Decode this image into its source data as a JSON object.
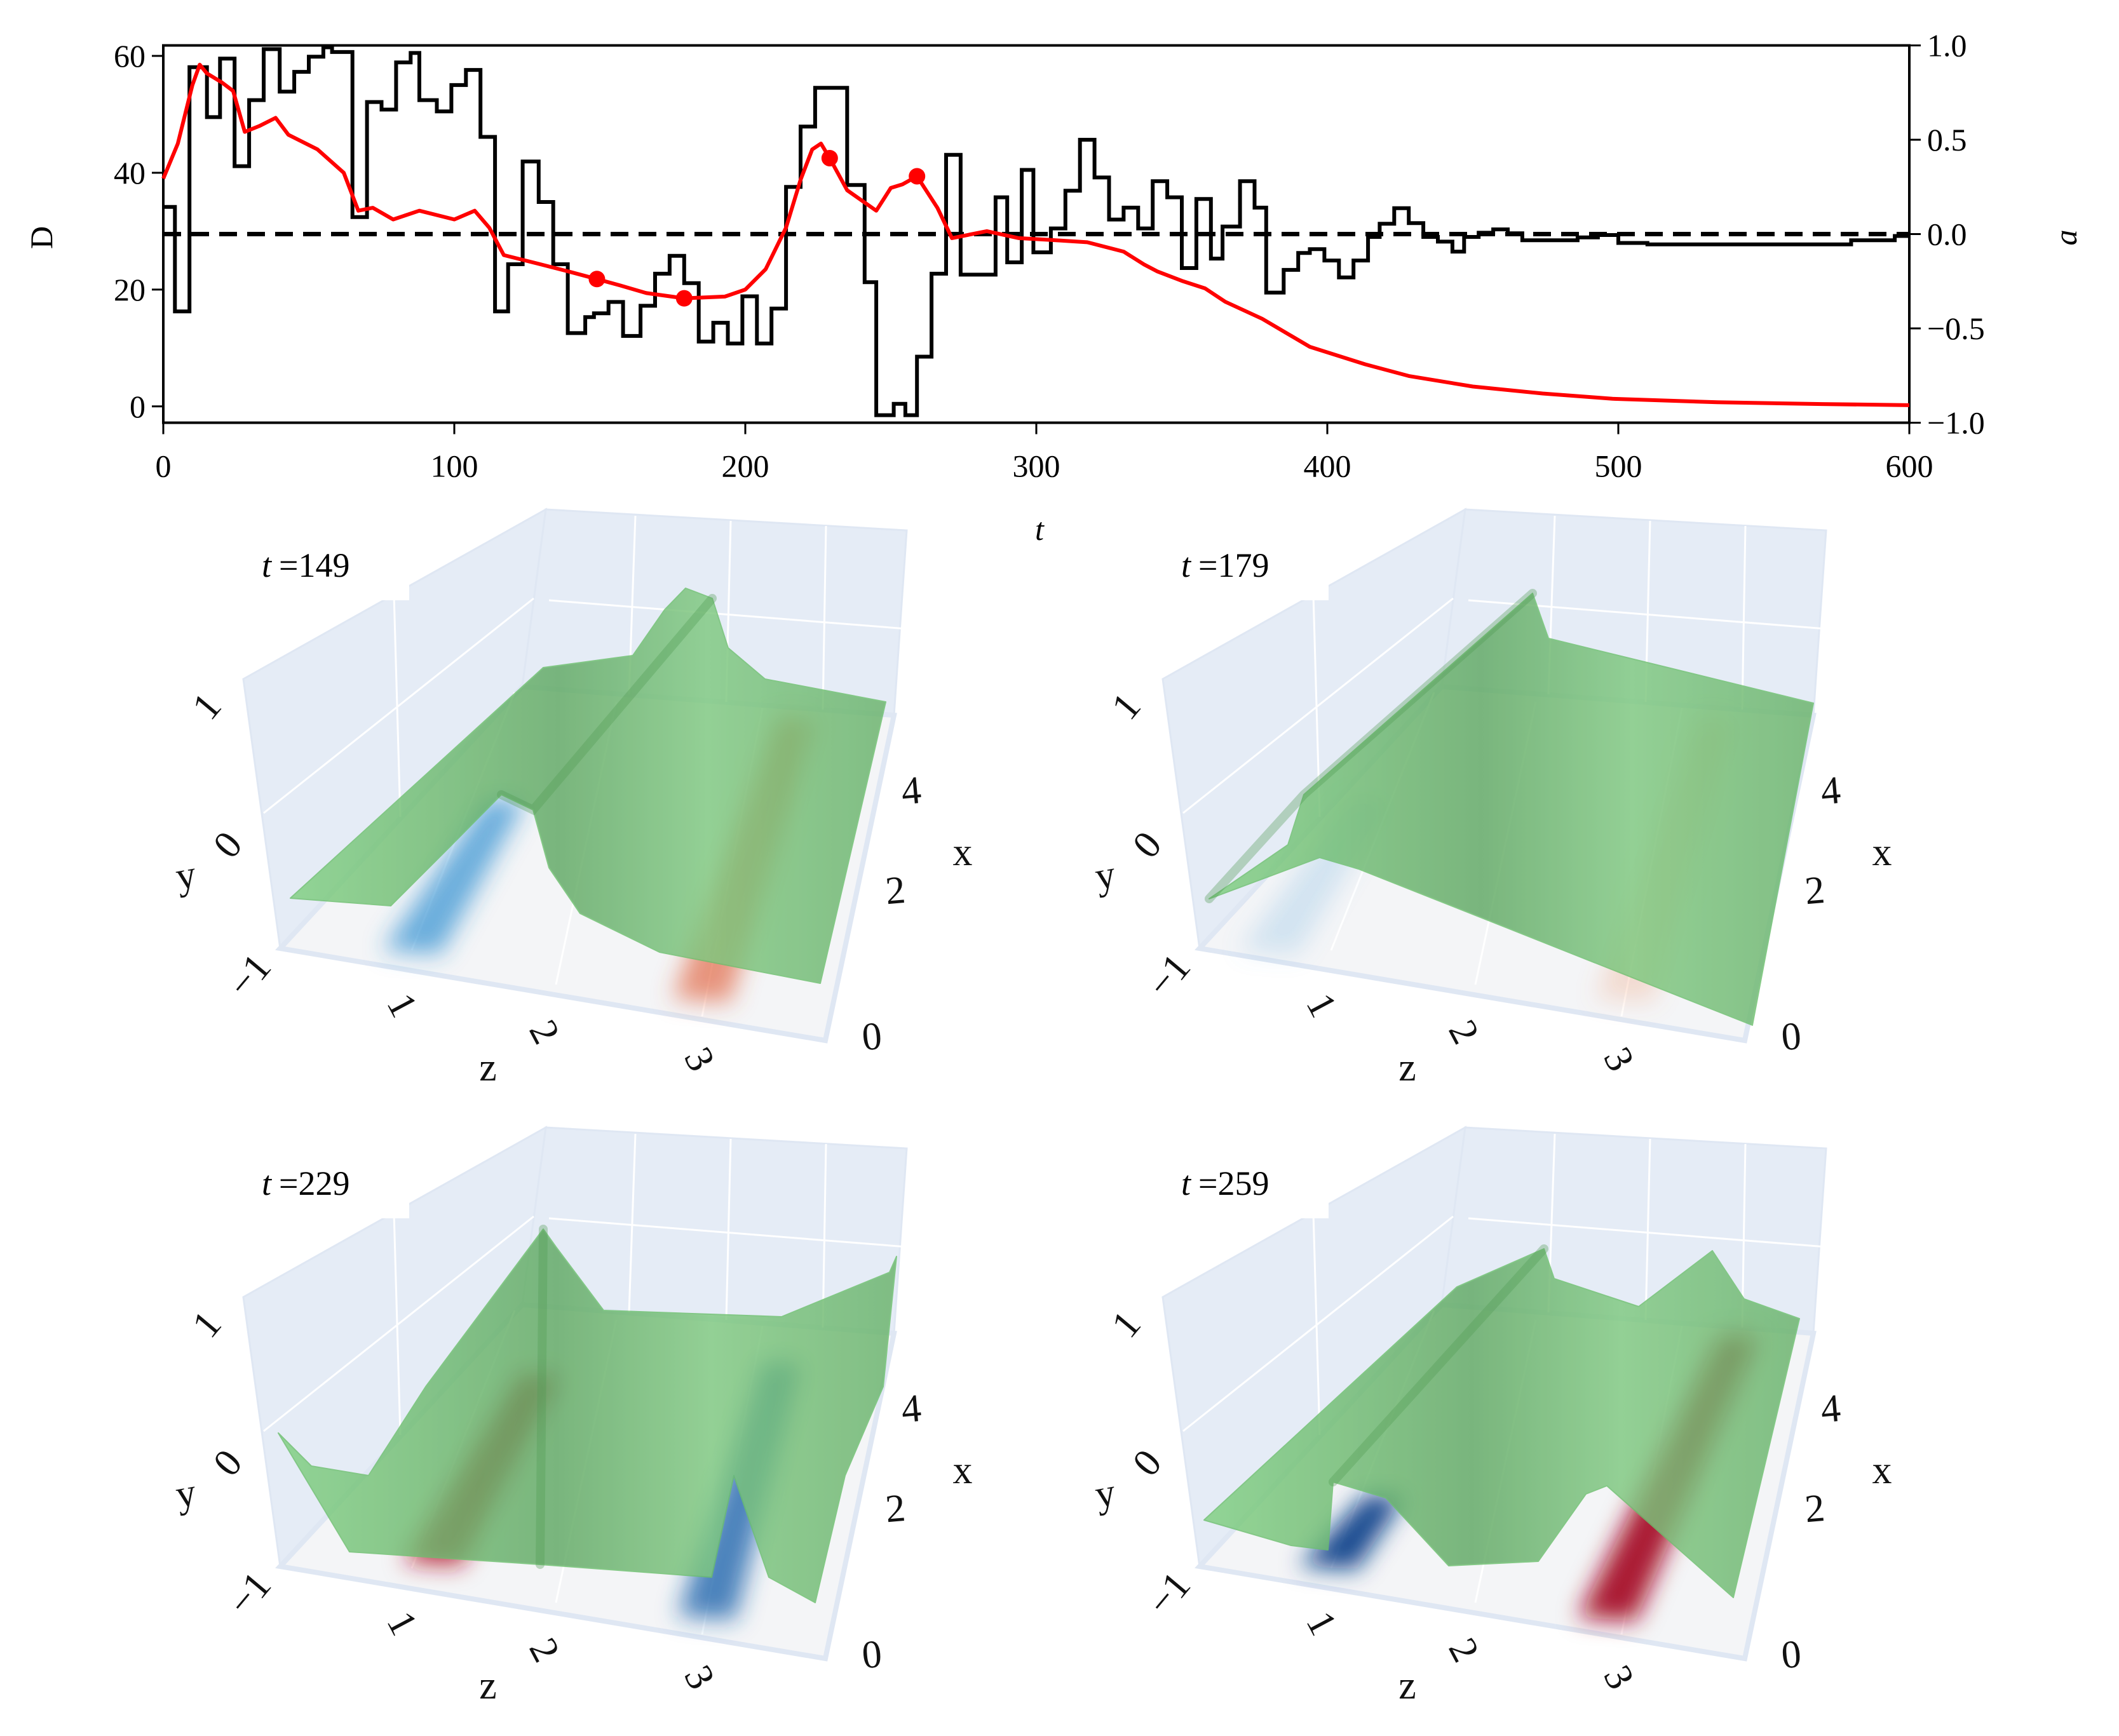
{
  "chart_data": [
    {
      "type": "line",
      "title": "",
      "xlabel": "t",
      "ylabel": "D",
      "y2label": "a",
      "xlim": [
        0,
        600
      ],
      "ylim": [
        -2.8,
        61.8
      ],
      "y2lim": [
        -1.0,
        1.0
      ],
      "xticks": [
        "0",
        "100",
        "200",
        "300",
        "400",
        "500",
        "600"
      ],
      "yticks": [
        "0",
        "20",
        "40",
        "60"
      ],
      "y2ticks": [
        "1.0",
        "0.5",
        "0.0",
        "−0.5",
        "−1.0"
      ],
      "grid": false,
      "reference_line": {
        "axis": "a",
        "value": 0.0,
        "style": "dashed",
        "color": "#000000"
      },
      "series": [
        {
          "name": "D",
          "axis": "left",
          "color": "#ff0000",
          "t": [
            0,
            5,
            10,
            12.5,
            15,
            20,
            24,
            28,
            33,
            38.6,
            43,
            53,
            62,
            67,
            72,
            79,
            88,
            100,
            107,
            112,
            117,
            129,
            140,
            149,
            157,
            166,
            179,
            193,
            200,
            207,
            214,
            219,
            223,
            226,
            229,
            235,
            245,
            250,
            254,
            259,
            266,
            271,
            283,
            294,
            305,
            317.5,
            330,
            337,
            341.6,
            350,
            358,
            365,
            377.6,
            394,
            413,
            428,
            450,
            474,
            498,
            534,
            570,
            600
          ],
          "values": [
            39,
            45,
            55,
            58.5,
            57,
            55.5,
            54,
            47,
            48,
            49.4,
            46.5,
            44,
            40,
            33.5,
            34,
            32,
            33.5,
            32,
            33.5,
            30.6,
            25.9,
            24.4,
            23,
            21.8,
            20.7,
            19.4,
            18.5,
            18.8,
            20,
            23.5,
            30.6,
            38.8,
            44,
            45,
            42.5,
            37,
            33.5,
            37.4,
            38,
            39.4,
            34,
            28.8,
            30,
            28.8,
            28.5,
            28.1,
            26.5,
            24.3,
            23.1,
            21.5,
            20.2,
            17.9,
            15,
            10.2,
            7.2,
            5.2,
            3.4,
            2.2,
            1.3,
            0.7,
            0.4,
            0.2
          ]
        },
        {
          "name": "a",
          "axis": "right",
          "color": "#000000",
          "drawstyle": "steps-post",
          "t": [
            0,
            4,
            9,
            15,
            19.5,
            24.5,
            29.5,
            34.5,
            40,
            45,
            50,
            55,
            58,
            65,
            70,
            75,
            80,
            85,
            88,
            94,
            99,
            104,
            109,
            114,
            118.5,
            123.5,
            129,
            134,
            139,
            145,
            148,
            153,
            158,
            164,
            169,
            174,
            179,
            184,
            189,
            194,
            199,
            204,
            209,
            214,
            219,
            224,
            235,
            241,
            245,
            251,
            255,
            259,
            264,
            269,
            274,
            286,
            290,
            295,
            299,
            305,
            310,
            315,
            320,
            325,
            330,
            335,
            340,
            345,
            350,
            355,
            360,
            364,
            370,
            375,
            379,
            385,
            390,
            394,
            399,
            404,
            409,
            414,
            418,
            423,
            428,
            433,
            438,
            443,
            447,
            452,
            457,
            462,
            467,
            486,
            493,
            500,
            510,
            550,
            580,
            595
          ],
          "values": [
            0.144,
            -0.41,
            0.885,
            0.62,
            0.93,
            0.36,
            0.71,
            0.98,
            0.755,
            0.86,
            0.94,
            0.99,
            0.965,
            0.09,
            0.7,
            0.66,
            0.91,
            0.96,
            0.71,
            0.65,
            0.79,
            0.87,
            0.515,
            -0.41,
            -0.16,
            0.385,
            0.17,
            -0.16,
            -0.525,
            -0.44,
            -0.42,
            -0.36,
            -0.54,
            -0.38,
            -0.21,
            -0.115,
            -0.26,
            -0.57,
            -0.47,
            -0.58,
            -0.33,
            -0.58,
            -0.395,
            0.25,
            0.57,
            0.775,
            0.26,
            -0.255,
            -0.96,
            -0.9,
            -0.96,
            -0.65,
            -0.21,
            0.42,
            -0.215,
            0.195,
            -0.15,
            0.34,
            -0.097,
            0.03,
            0.23,
            0.5,
            0.3,
            0.077,
            0.14,
            0.03,
            0.28,
            0.195,
            -0.18,
            0.186,
            -0.13,
            0.04,
            0.28,
            0.14,
            -0.31,
            -0.19,
            -0.1,
            -0.08,
            -0.14,
            -0.23,
            -0.14,
            -0.015,
            0.055,
            0.137,
            0.058,
            -0.015,
            -0.04,
            -0.093,
            -0.015,
            0.007,
            0.025,
            0.004,
            -0.033,
            -0.018,
            -0.005,
            -0.047,
            -0.055,
            -0.055,
            -0.033,
            -0.01
          ]
        }
      ],
      "markers": {
        "color": "#ff0000",
        "t": [
          149,
          179,
          229,
          259
        ],
        "D": [
          21.8,
          18.5,
          42.5,
          39.4
        ]
      }
    }
  ],
  "panels": [
    {
      "t_var": "t",
      "t_value": "=149"
    },
    {
      "t_var": "t",
      "t_value": "=179"
    },
    {
      "t_var": "t",
      "t_value": "=229"
    },
    {
      "t_var": "t",
      "t_value": "=259"
    }
  ],
  "panel_axes": {
    "y_label": "y",
    "y_ticks": [
      "1",
      "0",
      "−1"
    ],
    "z_label": "z",
    "z_ticks": [
      "1",
      "2",
      "3"
    ],
    "x_label": "x",
    "x_ticks": [
      "0",
      "2",
      "4"
    ]
  },
  "colors": {
    "pane": "#e5ecf6",
    "floor": "#f4f5f7",
    "surface": "#6cc46c",
    "positive": "#b2182b",
    "negative": "#2166ac"
  }
}
